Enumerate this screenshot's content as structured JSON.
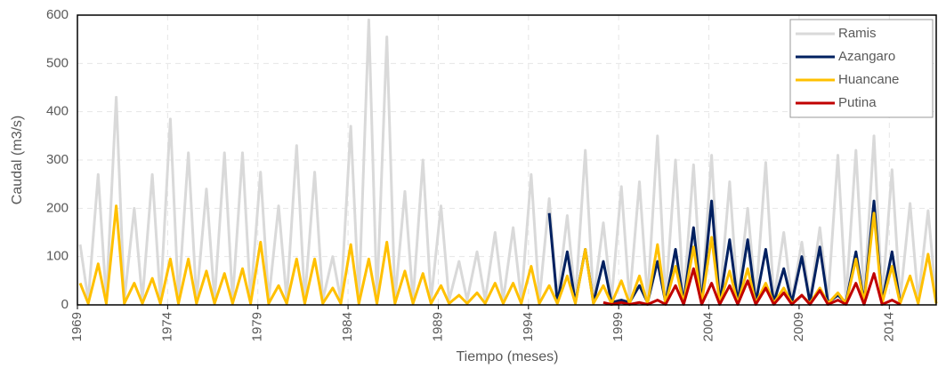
{
  "chart_data": {
    "type": "line",
    "y_label": "Caudal (m3/s)",
    "x_label": "Tiempo (meses)",
    "x": [
      1969.15,
      1969.6,
      1970.15,
      1970.6,
      1971.15,
      1971.6,
      1972.15,
      1972.6,
      1973.15,
      1973.6,
      1974.15,
      1974.6,
      1975.15,
      1975.6,
      1976.15,
      1976.6,
      1977.15,
      1977.6,
      1978.15,
      1978.6,
      1979.15,
      1979.6,
      1980.15,
      1980.6,
      1981.15,
      1981.6,
      1982.15,
      1982.6,
      1983.15,
      1983.6,
      1984.15,
      1984.6,
      1985.15,
      1985.6,
      1986.15,
      1986.6,
      1987.15,
      1987.6,
      1988.15,
      1988.6,
      1989.15,
      1989.6,
      1990.15,
      1990.6,
      1991.15,
      1991.6,
      1992.15,
      1992.6,
      1993.15,
      1993.6,
      1994.15,
      1994.6,
      1995.15,
      1995.6,
      1996.15,
      1996.6,
      1997.15,
      1997.6,
      1998.15,
      1998.6,
      1999.15,
      1999.6,
      2000.15,
      2000.6,
      2001.15,
      2001.6,
      2002.15,
      2002.6,
      2003.15,
      2003.6,
      2004.15,
      2004.6,
      2005.15,
      2005.6,
      2006.15,
      2006.6,
      2007.15,
      2007.6,
      2008.15,
      2008.6,
      2009.15,
      2009.6,
      2010.15,
      2010.6,
      2011.15,
      2011.6,
      2012.15,
      2012.6,
      2013.15,
      2013.6,
      2014.15,
      2014.6,
      2015.15,
      2015.6,
      2016.15,
      2016.6
    ],
    "series": [
      {
        "name": "Ramis",
        "color": "#d9d9d9",
        "values": [
          125,
          10,
          270,
          10,
          430,
          10,
          200,
          10,
          270,
          10,
          385,
          10,
          315,
          10,
          240,
          10,
          315,
          10,
          315,
          10,
          275,
          10,
          205,
          10,
          330,
          10,
          275,
          10,
          100,
          10,
          370,
          10,
          590,
          10,
          555,
          10,
          235,
          10,
          300,
          10,
          205,
          10,
          90,
          10,
          110,
          10,
          150,
          10,
          160,
          10,
          270,
          10,
          220,
          10,
          185,
          10,
          320,
          10,
          170,
          10,
          245,
          10,
          255,
          10,
          350,
          10,
          300,
          10,
          290,
          10,
          310,
          10,
          255,
          10,
          200,
          10,
          295,
          10,
          150,
          10,
          130,
          10,
          160,
          10,
          310,
          10,
          320,
          10,
          350,
          10,
          280,
          10,
          210,
          10,
          195,
          10
        ]
      },
      {
        "name": "Azangaro",
        "color": "#002060",
        "values": [
          null,
          null,
          null,
          null,
          null,
          null,
          null,
          null,
          null,
          null,
          null,
          null,
          null,
          null,
          null,
          null,
          null,
          null,
          null,
          null,
          null,
          null,
          null,
          null,
          null,
          null,
          null,
          null,
          null,
          null,
          null,
          null,
          null,
          null,
          null,
          null,
          null,
          null,
          null,
          null,
          null,
          null,
          null,
          null,
          null,
          null,
          null,
          null,
          null,
          null,
          null,
          null,
          190,
          5,
          110,
          5,
          115,
          5,
          90,
          5,
          10,
          5,
          40,
          5,
          90,
          5,
          115,
          5,
          160,
          5,
          215,
          5,
          135,
          5,
          135,
          5,
          115,
          5,
          75,
          5,
          100,
          5,
          120,
          5,
          20,
          5,
          110,
          5,
          215,
          5,
          110,
          5,
          null,
          null,
          null,
          null
        ]
      },
      {
        "name": "Huancane",
        "color": "#ffc000",
        "values": [
          45,
          3,
          85,
          3,
          205,
          3,
          45,
          3,
          55,
          3,
          95,
          3,
          95,
          3,
          70,
          3,
          65,
          3,
          75,
          3,
          130,
          3,
          40,
          3,
          95,
          3,
          95,
          3,
          35,
          3,
          125,
          3,
          95,
          3,
          130,
          3,
          70,
          3,
          65,
          3,
          40,
          3,
          20,
          3,
          25,
          3,
          45,
          3,
          45,
          3,
          80,
          3,
          40,
          3,
          60,
          3,
          115,
          3,
          40,
          3,
          50,
          3,
          60,
          3,
          125,
          3,
          80,
          3,
          120,
          3,
          140,
          3,
          70,
          3,
          75,
          3,
          45,
          3,
          35,
          3,
          20,
          3,
          35,
          3,
          25,
          3,
          95,
          3,
          190,
          3,
          80,
          3,
          60,
          3,
          105,
          3
        ]
      },
      {
        "name": "Putina",
        "color": "#c00000",
        "values": [
          null,
          null,
          null,
          null,
          null,
          null,
          null,
          null,
          null,
          null,
          null,
          null,
          null,
          null,
          null,
          null,
          null,
          null,
          null,
          null,
          null,
          null,
          null,
          null,
          null,
          null,
          null,
          null,
          null,
          null,
          null,
          null,
          null,
          null,
          null,
          null,
          null,
          null,
          null,
          null,
          null,
          null,
          null,
          null,
          null,
          null,
          null,
          null,
          null,
          null,
          null,
          null,
          null,
          null,
          null,
          null,
          null,
          null,
          5,
          1,
          5,
          1,
          5,
          1,
          10,
          1,
          40,
          1,
          75,
          1,
          45,
          1,
          40,
          1,
          50,
          1,
          35,
          1,
          25,
          1,
          20,
          1,
          30,
          1,
          10,
          1,
          45,
          1,
          65,
          1,
          10,
          1,
          null,
          null,
          null,
          null
        ]
      }
    ],
    "xlim": [
      1969,
      2016.6
    ],
    "xticks": [
      1969,
      1974,
      1979,
      1984,
      1989,
      1994,
      1999,
      2004,
      2009,
      2014
    ],
    "ylim": [
      0,
      600
    ],
    "yticks": [
      0,
      100,
      200,
      300,
      400,
      500,
      600
    ],
    "grid": true,
    "legend": "top-right"
  }
}
